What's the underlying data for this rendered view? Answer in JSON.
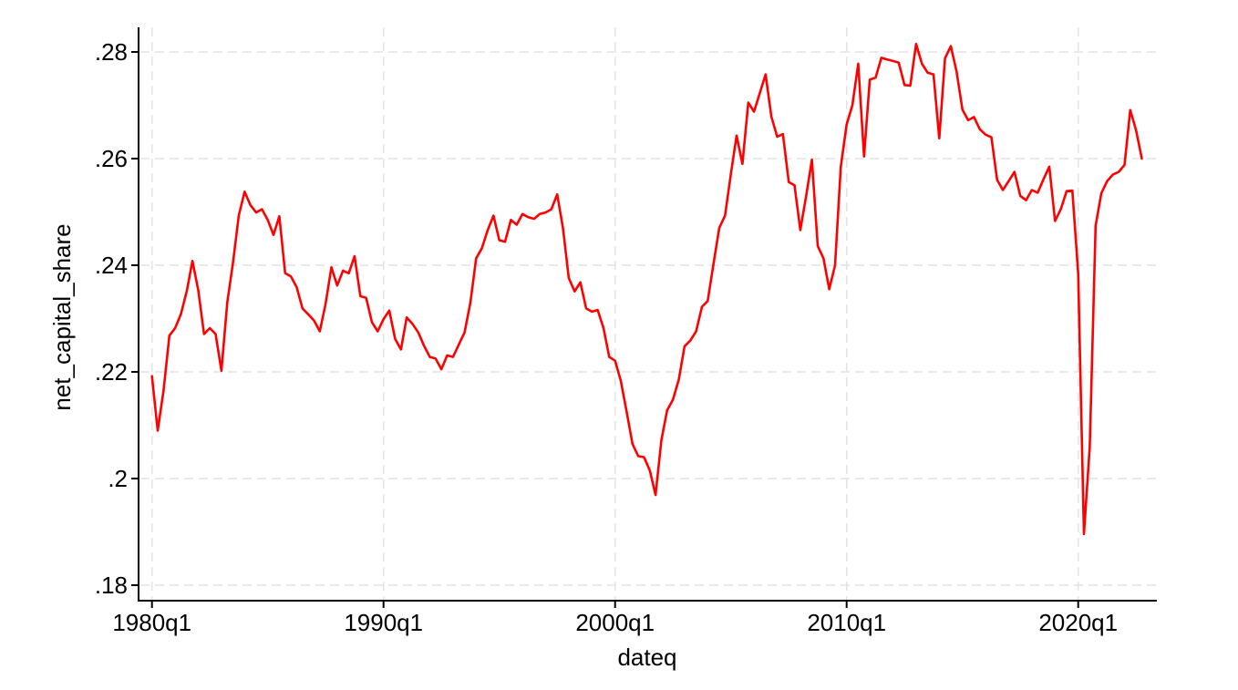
{
  "chart_data": {
    "type": "line",
    "title": "",
    "xlabel": "dateq",
    "ylabel": "net_capital_share",
    "legend": null,
    "grid": true,
    "series_name": "net_capital_share",
    "series_color": "#ff0000",
    "background_color": "#ffffff",
    "gridline_color": "#e3e3e3",
    "axis_color": "#000000",
    "frequency": "quarterly",
    "x_range": [
      "1980q1",
      "2022q4"
    ],
    "ylim": [
      0.177,
      0.285
    ],
    "y_ticks": [
      ".18",
      ".2",
      ".22",
      ".24",
      ".26",
      ".28"
    ],
    "y_tick_values": [
      0.18,
      0.2,
      0.22,
      0.24,
      0.26,
      0.28
    ],
    "x_ticks": [
      "1980q1",
      "1990q1",
      "2000q1",
      "2010q1",
      "2020q1"
    ],
    "x_tick_quarter_index": [
      0,
      40,
      80,
      120,
      160
    ],
    "dates": [
      "1980q1",
      "1980q2",
      "1980q3",
      "1980q4",
      "1981q1",
      "1981q2",
      "1981q3",
      "1981q4",
      "1982q1",
      "1982q2",
      "1982q3",
      "1982q4",
      "1983q1",
      "1983q2",
      "1983q3",
      "1983q4",
      "1984q1",
      "1984q2",
      "1984q3",
      "1984q4",
      "1985q1",
      "1985q2",
      "1985q3",
      "1985q4",
      "1986q1",
      "1986q2",
      "1986q3",
      "1986q4",
      "1987q1",
      "1987q2",
      "1987q3",
      "1987q4",
      "1988q1",
      "1988q2",
      "1988q3",
      "1988q4",
      "1989q1",
      "1989q2",
      "1989q3",
      "1989q4",
      "1990q1",
      "1990q2",
      "1990q3",
      "1990q4",
      "1991q1",
      "1991q2",
      "1991q3",
      "1991q4",
      "1992q1",
      "1992q2",
      "1992q3",
      "1992q4",
      "1993q1",
      "1993q2",
      "1993q3",
      "1993q4",
      "1994q1",
      "1994q2",
      "1994q3",
      "1994q4",
      "1995q1",
      "1995q2",
      "1995q3",
      "1995q4",
      "1996q1",
      "1996q2",
      "1996q3",
      "1996q4",
      "1997q1",
      "1997q2",
      "1997q3",
      "1997q4",
      "1998q1",
      "1998q2",
      "1998q3",
      "1998q4",
      "1999q1",
      "1999q2",
      "1999q3",
      "1999q4",
      "2000q1",
      "2000q2",
      "2000q3",
      "2000q4",
      "2001q1",
      "2001q2",
      "2001q3",
      "2001q4",
      "2002q1",
      "2002q2",
      "2002q3",
      "2002q4",
      "2003q1",
      "2003q2",
      "2003q3",
      "2003q4",
      "2004q1",
      "2004q2",
      "2004q3",
      "2004q4",
      "2005q1",
      "2005q2",
      "2005q3",
      "2005q4",
      "2006q1",
      "2006q2",
      "2006q3",
      "2006q4",
      "2007q1",
      "2007q2",
      "2007q3",
      "2007q4",
      "2008q1",
      "2008q2",
      "2008q3",
      "2008q4",
      "2009q1",
      "2009q2",
      "2009q3",
      "2009q4",
      "2010q1",
      "2010q2",
      "2010q3",
      "2010q4",
      "2011q1",
      "2011q2",
      "2011q3",
      "2011q4",
      "2012q1",
      "2012q2",
      "2012q3",
      "2012q4",
      "2013q1",
      "2013q2",
      "2013q3",
      "2013q4",
      "2014q1",
      "2014q2",
      "2014q3",
      "2014q4",
      "2015q1",
      "2015q2",
      "2015q3",
      "2015q4",
      "2016q1",
      "2016q2",
      "2016q3",
      "2016q4",
      "2017q1",
      "2017q2",
      "2017q3",
      "2017q4",
      "2018q1",
      "2018q2",
      "2018q3",
      "2018q4",
      "2019q1",
      "2019q2",
      "2019q3",
      "2019q4",
      "2020q1",
      "2020q2",
      "2020q3",
      "2020q4",
      "2021q1",
      "2021q2",
      "2021q3",
      "2021q4",
      "2022q1",
      "2022q2",
      "2022q3",
      "2022q4"
    ],
    "values": [
      0.2192,
      0.209,
      0.2165,
      0.2268,
      0.2282,
      0.2308,
      0.2351,
      0.2408,
      0.2353,
      0.2271,
      0.2282,
      0.2271,
      0.2202,
      0.233,
      0.2405,
      0.2493,
      0.2538,
      0.2513,
      0.2499,
      0.2505,
      0.2485,
      0.2457,
      0.2492,
      0.2385,
      0.2379,
      0.2359,
      0.2319,
      0.2308,
      0.2296,
      0.2276,
      0.2328,
      0.2396,
      0.2362,
      0.239,
      0.2385,
      0.2417,
      0.2342,
      0.2339,
      0.2293,
      0.2276,
      0.2299,
      0.2315,
      0.2262,
      0.2242,
      0.2302,
      0.229,
      0.2274,
      0.2249,
      0.2228,
      0.2225,
      0.2205,
      0.2231,
      0.2228,
      0.2251,
      0.2274,
      0.233,
      0.2413,
      0.2432,
      0.2466,
      0.2493,
      0.2447,
      0.2444,
      0.2485,
      0.2476,
      0.2496,
      0.249,
      0.2487,
      0.2496,
      0.2499,
      0.2505,
      0.2533,
      0.247,
      0.2376,
      0.2351,
      0.2368,
      0.2319,
      0.2313,
      0.2316,
      0.2282,
      0.2228,
      0.2221,
      0.2183,
      0.2125,
      0.2065,
      0.2042,
      0.204,
      0.2015,
      0.1969,
      0.2072,
      0.2128,
      0.2148,
      0.2185,
      0.2248,
      0.2259,
      0.2276,
      0.2322,
      0.2333,
      0.2402,
      0.247,
      0.2493,
      0.2571,
      0.2643,
      0.259,
      0.2705,
      0.2688,
      0.2723,
      0.2758,
      0.2679,
      0.2641,
      0.2646,
      0.2556,
      0.255,
      0.2466,
      0.253,
      0.2598,
      0.2436,
      0.2413,
      0.2355,
      0.24,
      0.2585,
      0.2664,
      0.27,
      0.2778,
      0.2604,
      0.2748,
      0.2752,
      0.2789,
      0.2786,
      0.2783,
      0.278,
      0.2738,
      0.2737,
      0.2815,
      0.2778,
      0.2761,
      0.2758,
      0.2638,
      0.2788,
      0.2811,
      0.2763,
      0.2692,
      0.2672,
      0.2678,
      0.2655,
      0.2645,
      0.264,
      0.256,
      0.2541,
      0.2558,
      0.2575,
      0.253,
      0.2522,
      0.2541,
      0.2536,
      0.2561,
      0.2585,
      0.2483,
      0.2505,
      0.2539,
      0.254,
      0.2385,
      0.1896,
      0.206,
      0.2474,
      0.2535,
      0.2558,
      0.257,
      0.2575,
      0.2588,
      0.2691,
      0.2653,
      0.26
    ]
  }
}
